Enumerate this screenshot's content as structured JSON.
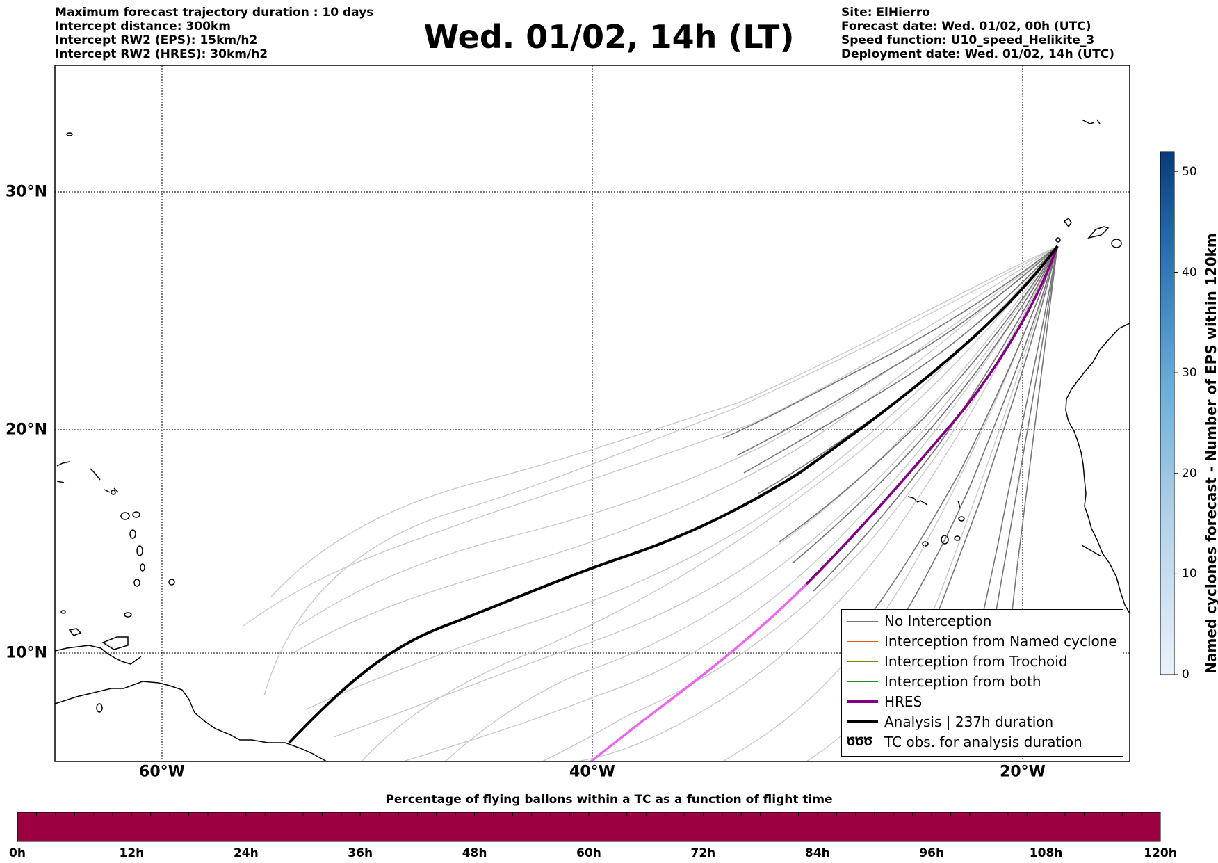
{
  "header_left": [
    "Maximum forecast trajectory duration : 10 days",
    "Intercept distance: 300km",
    "Intercept RW2 (EPS):  15km/h2",
    "Intercept RW2 (HRES): 30km/h2"
  ],
  "header_right": [
    "Site: ElHierro",
    "Forecast date: Wed. 01/02, 00h (UTC)",
    "Speed function: U10_speed_Helikite_3",
    "Deployment date: Wed. 01/02, 14h (UTC)"
  ],
  "title": "Wed. 01/02, 14h (LT)",
  "map": {
    "lon_range": [
      -65,
      -15
    ],
    "lat_range": [
      5.4,
      34.7
    ],
    "lat_labels": [
      {
        "lat": 30,
        "text": "30°N"
      },
      {
        "lat": 20,
        "text": "20°N"
      },
      {
        "lat": 10,
        "text": "10°N"
      }
    ],
    "lon_labels": [
      {
        "lon": -60,
        "text": "60°W"
      },
      {
        "lon": -40,
        "text": "40°W"
      },
      {
        "lon": -20,
        "text": "20°W"
      }
    ],
    "site": {
      "lon": -18,
      "lat": 27.7
    }
  },
  "legend": {
    "items": [
      {
        "label": "No Interception",
        "color": "#777777",
        "style": "thin"
      },
      {
        "label": "Interception from Named cyclone",
        "color": "#ee5500",
        "style": "thin"
      },
      {
        "label": "Interception from Trochoid",
        "color": "#808000",
        "style": "thin"
      },
      {
        "label": "Interception from both",
        "color": "#228822",
        "style": "thin"
      },
      {
        "label": "HRES",
        "color": "#800080",
        "style": "thick"
      },
      {
        "label": "Analysis | 237h duration",
        "color": "#000000",
        "style": "thick"
      },
      {
        "label": "TC obs. for analysis duration",
        "color": "#000000",
        "style": "symbol",
        "symbol": "ԾԾԾ"
      }
    ]
  },
  "colorbar": {
    "label": "Named cyclones forecast - Number of EPS within 120km",
    "ticks": [
      "0",
      "10",
      "20",
      "30",
      "40",
      "50"
    ],
    "min": 0,
    "max": 52
  },
  "bottom_bar": {
    "label": "Percentage of flying ballons within a TC as a function of flight time",
    "ticks": [
      "0h",
      "12h",
      "24h",
      "36h",
      "48h",
      "60h",
      "72h",
      "84h",
      "96h",
      "108h",
      "120h"
    ],
    "color": "#9c0040"
  }
}
